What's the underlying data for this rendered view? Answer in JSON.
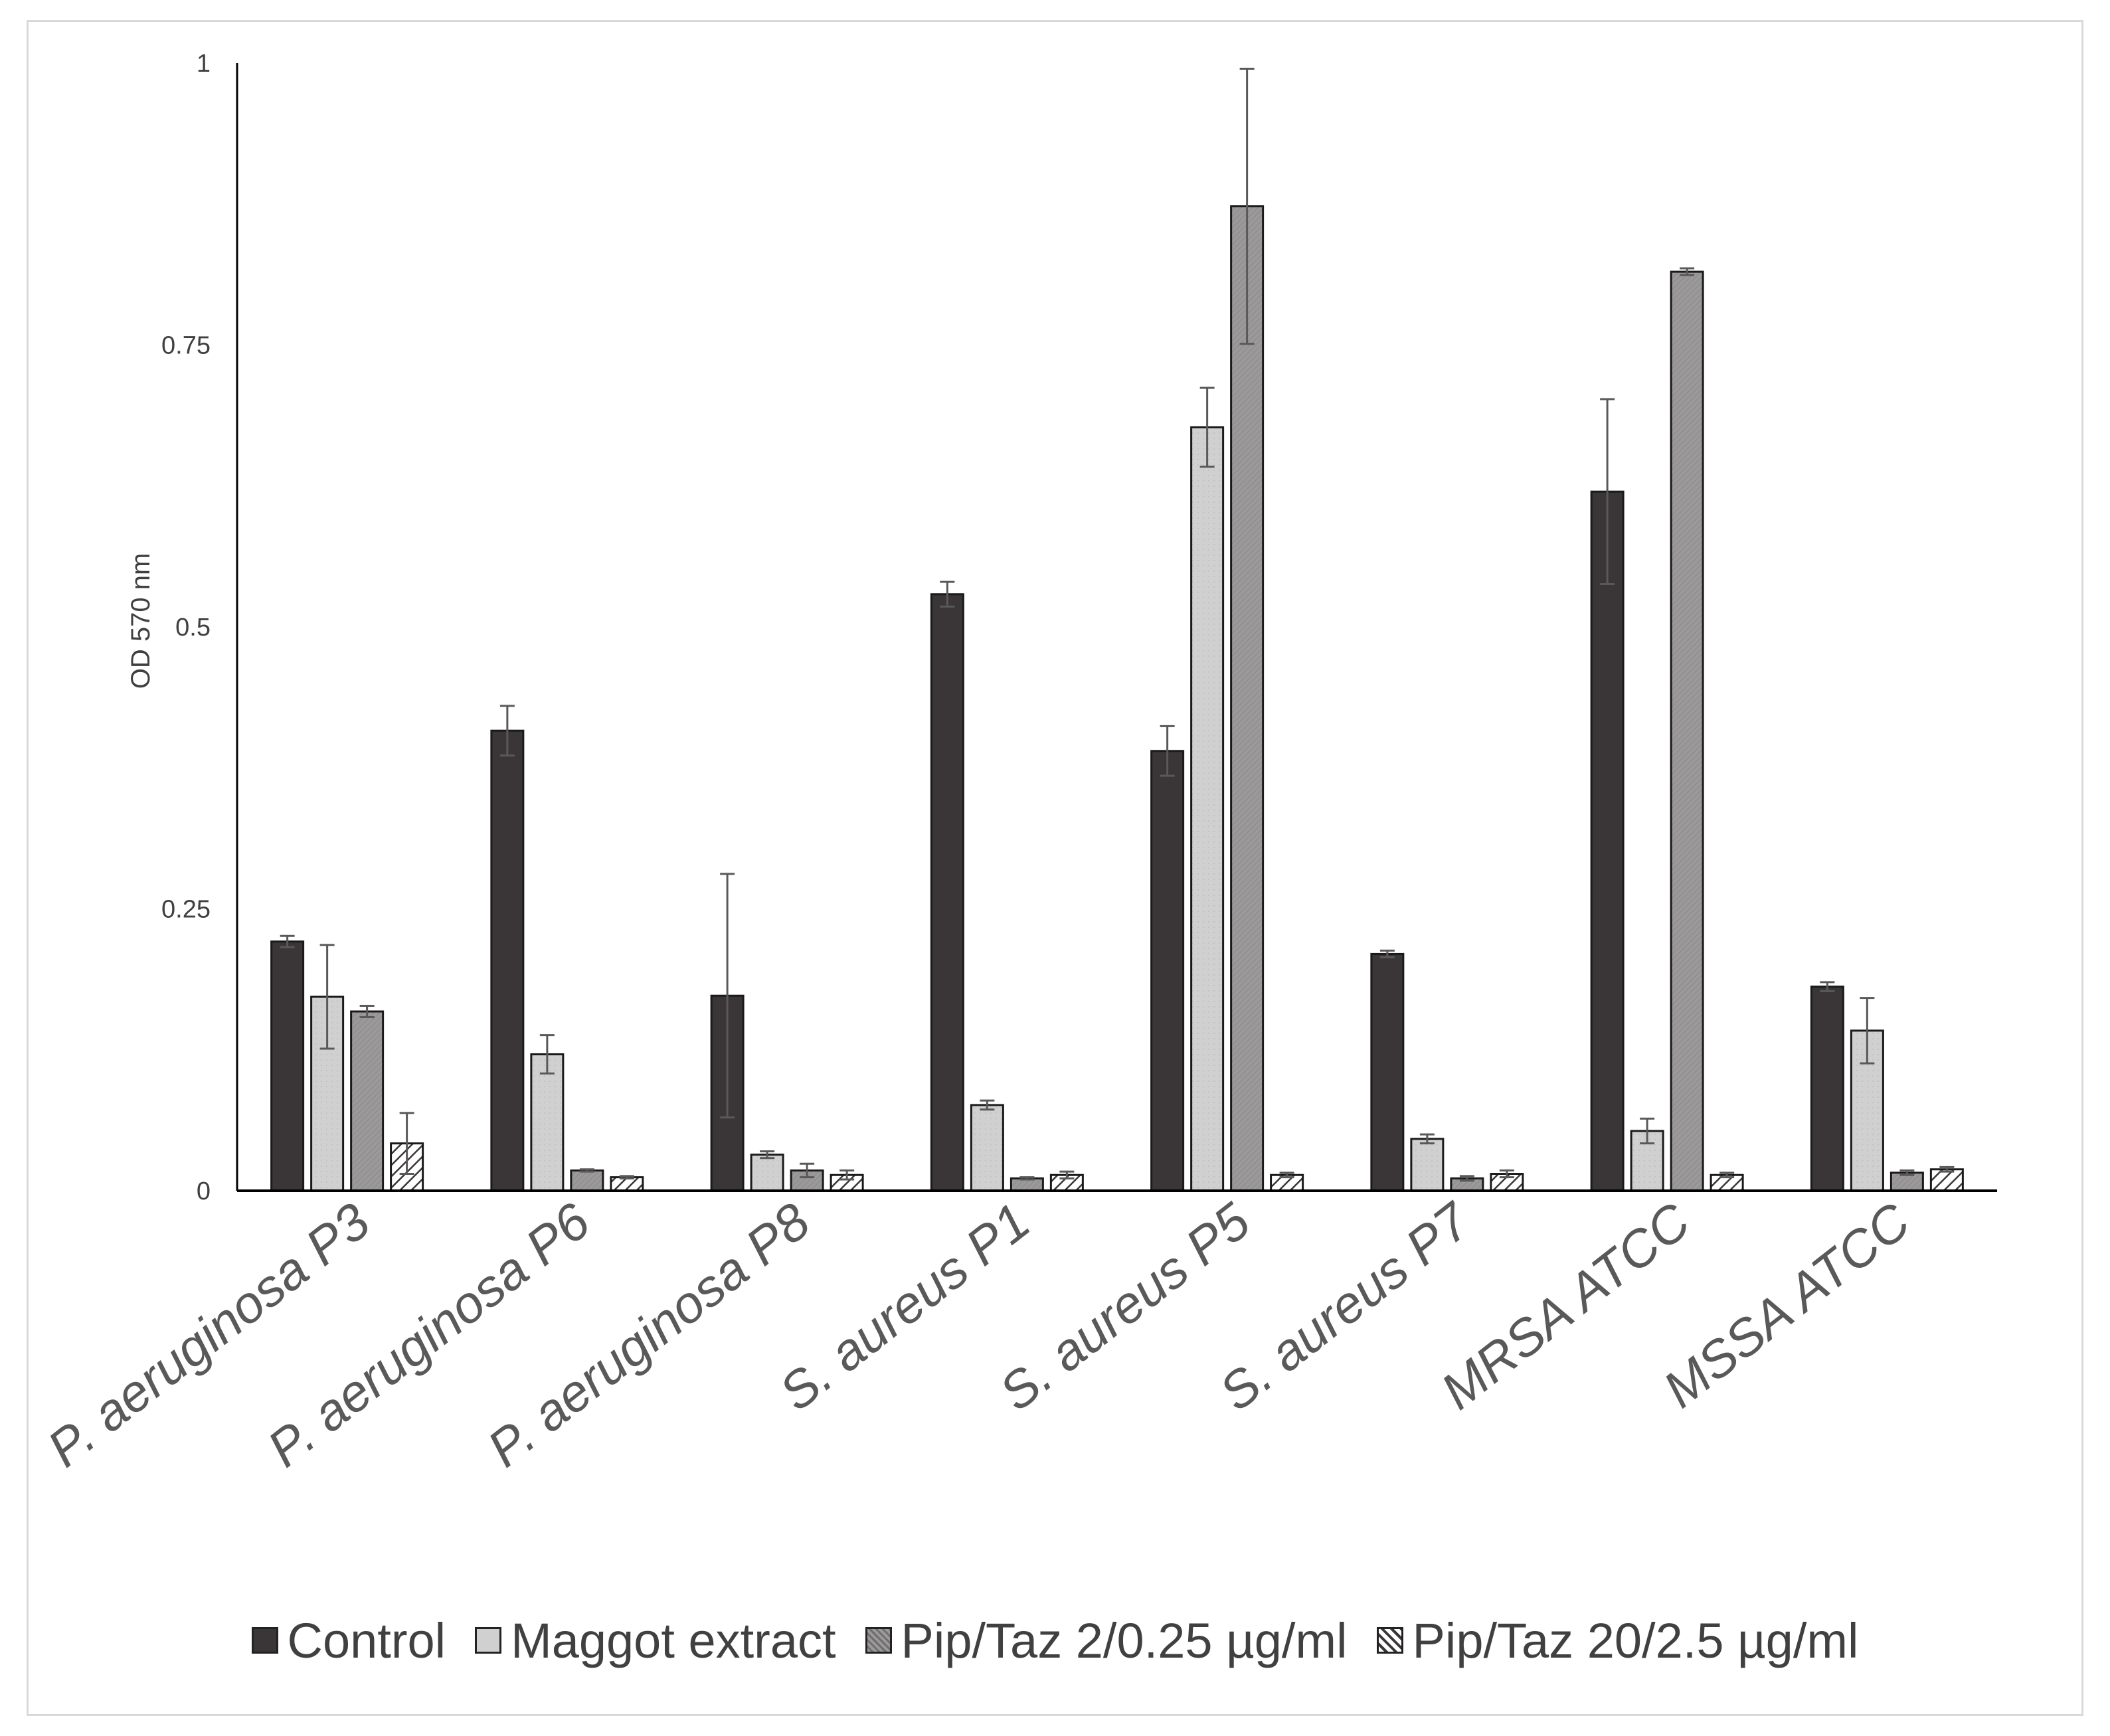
{
  "chart_data": {
    "type": "bar",
    "title": "",
    "xlabel": "",
    "ylabel": "OD 570 nm",
    "ylim": [
      0,
      1
    ],
    "yticks": [
      "0",
      "0.25",
      "0.5",
      "0.75",
      "1"
    ],
    "grid": false,
    "legend_position": "bottom",
    "categories": [
      "P. aeruginosa P3",
      "P. aeruginosa P6",
      "P. aeruginosa P8",
      "S. aureus P1",
      "S. aureus P5",
      "S. aureus P7",
      "MRSA ATCC",
      "MSSA ATCC"
    ],
    "series": [
      {
        "name": "Control",
        "color": "#3a3536",
        "pattern": "solid",
        "values": [
          0.221,
          0.408,
          0.173,
          0.529,
          0.39,
          0.21,
          0.62,
          0.181
        ],
        "errors": [
          0.005,
          0.022,
          0.108,
          0.011,
          0.022,
          0.003,
          0.082,
          0.004
        ]
      },
      {
        "name": "Maggot extract",
        "color": "#d0d0d0",
        "pattern": "light-dots",
        "values": [
          0.172,
          0.121,
          0.032,
          0.076,
          0.677,
          0.046,
          0.053,
          0.142
        ],
        "errors": [
          0.046,
          0.017,
          0.003,
          0.004,
          0.035,
          0.004,
          0.011,
          0.029
        ]
      },
      {
        "name": "Pip/Taz 2/0.25 µg/ml",
        "color": "#9b999a",
        "pattern": "diagonal-dense",
        "values": [
          0.159,
          0.018,
          0.018,
          0.011,
          0.873,
          0.011,
          0.815,
          0.016
        ],
        "errors": [
          0.005,
          0.001,
          0.006,
          0.001,
          0.122,
          0.002,
          0.003,
          0.002
        ]
      },
      {
        "name": "Pip/Taz 20/2.5 µg/ml",
        "color": "#ffffff",
        "pattern": "diagonal-wide",
        "values": [
          0.042,
          0.012,
          0.014,
          0.014,
          0.014,
          0.015,
          0.014,
          0.019
        ],
        "errors": [
          0.027,
          0.001,
          0.004,
          0.003,
          0.002,
          0.003,
          0.002,
          0.002
        ]
      }
    ]
  }
}
